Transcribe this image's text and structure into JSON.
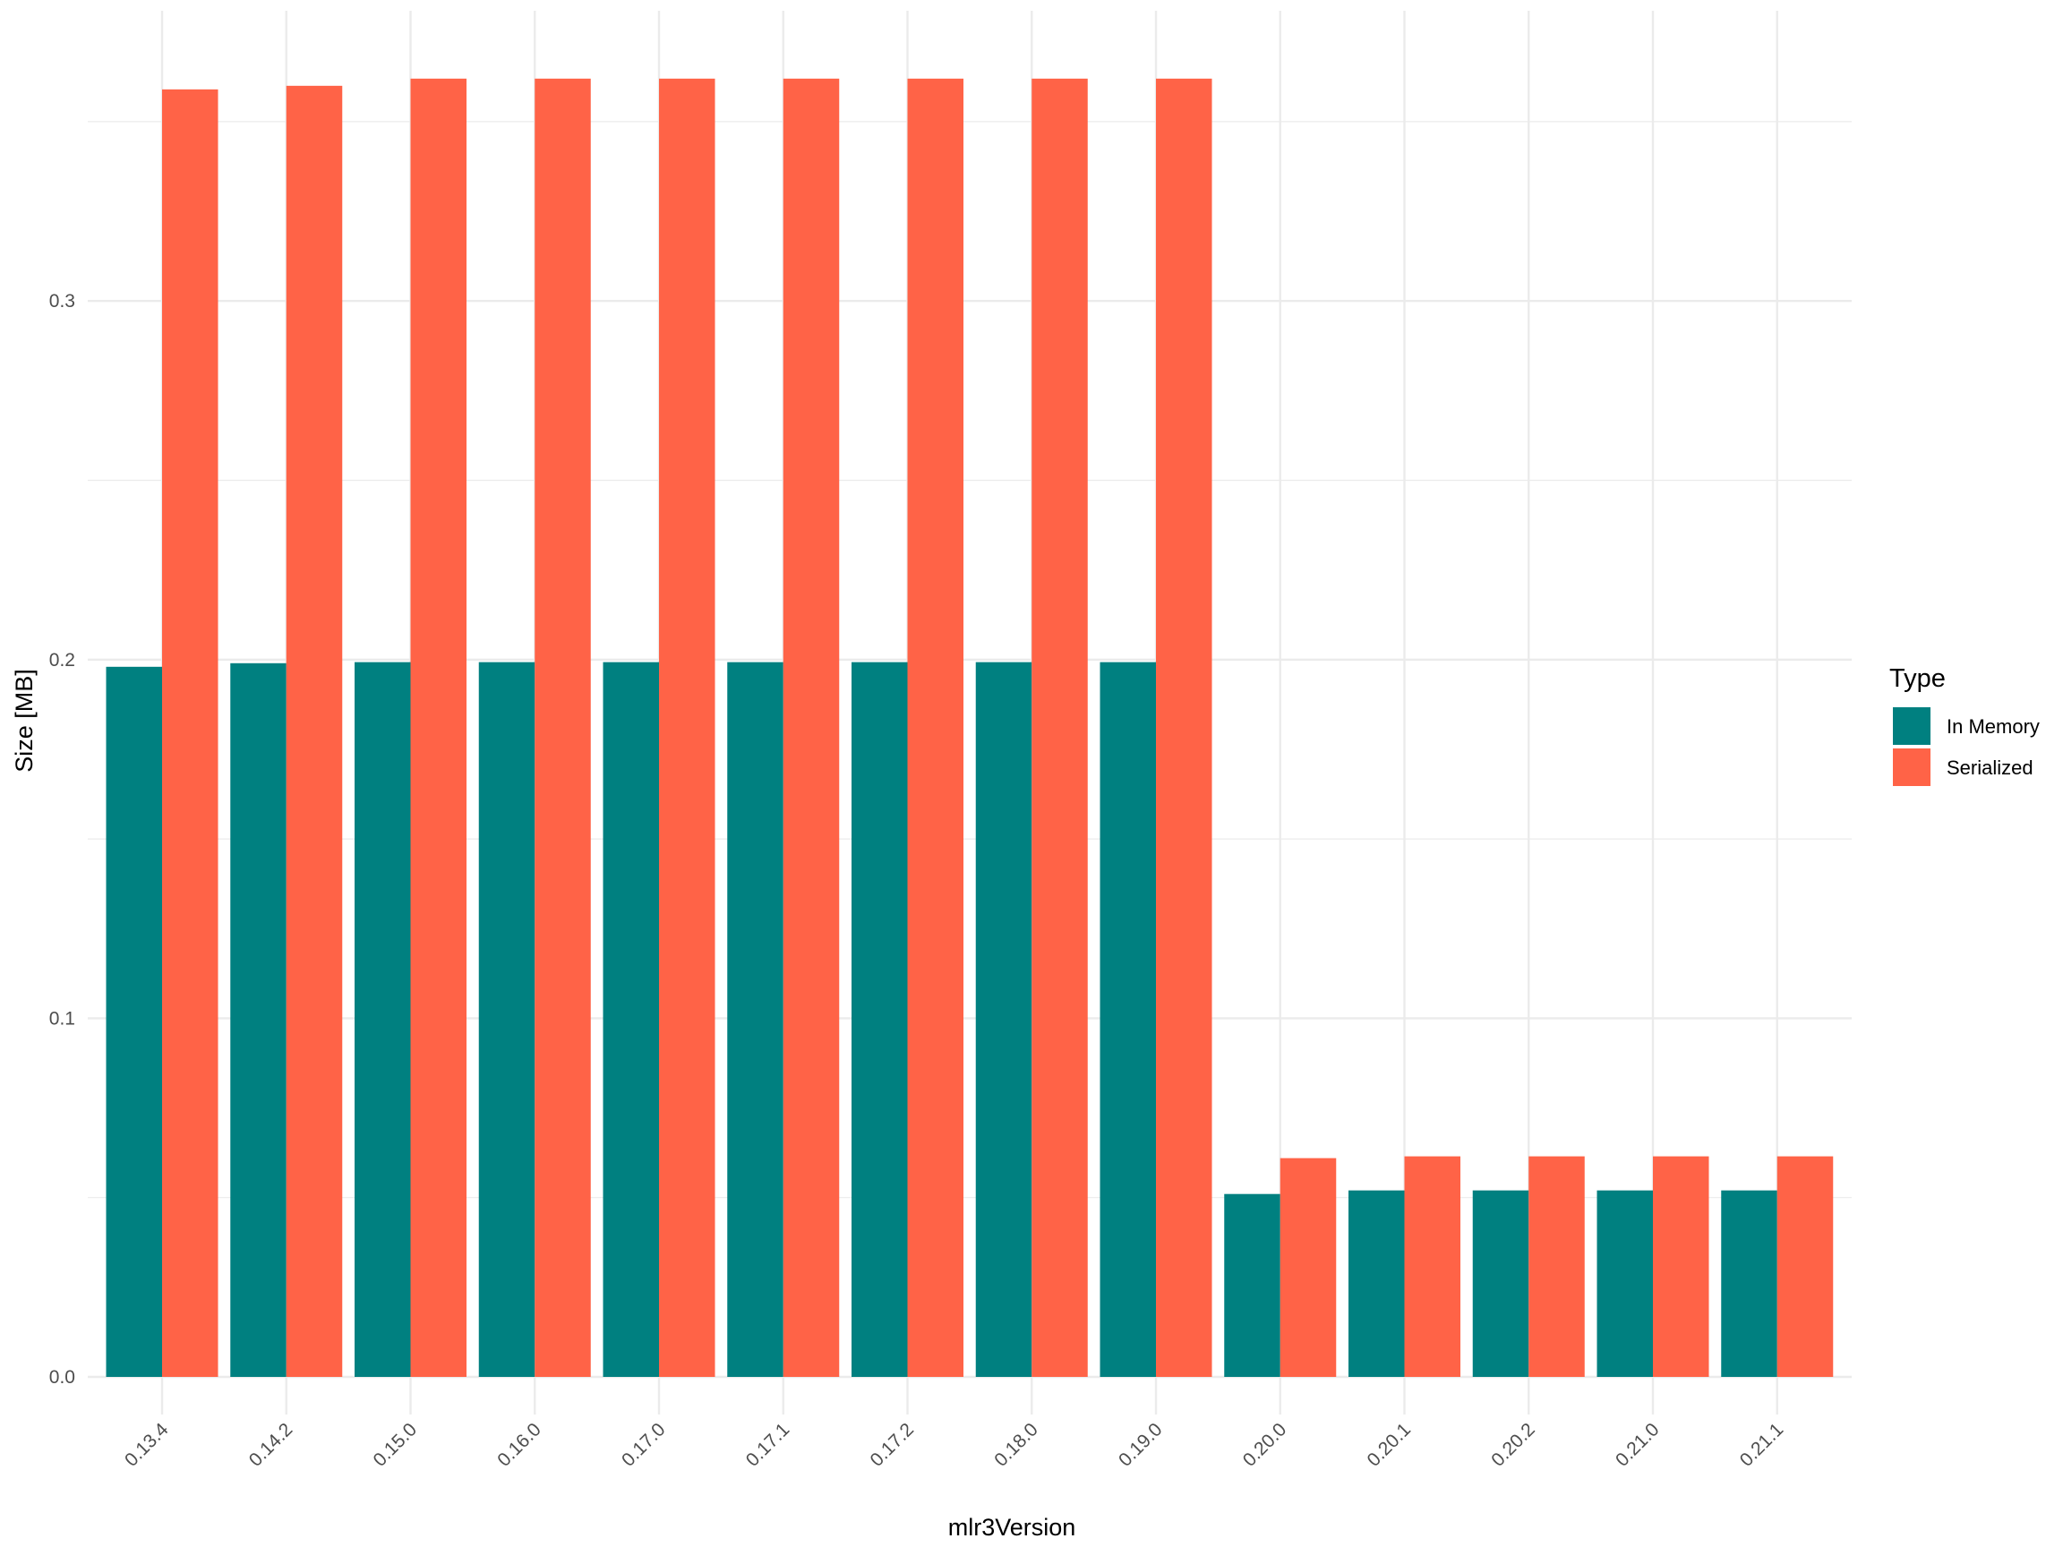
{
  "chart_data": {
    "type": "bar",
    "xlabel": "mlr3Version",
    "ylabel": "Size [MB]",
    "ylim": [
      -0.01,
      0.38
    ],
    "yticks": [
      0.0,
      0.1,
      0.2,
      0.3
    ],
    "ytick_labels": [
      "0.0",
      "0.1",
      "0.2",
      "0.3"
    ],
    "grid": true,
    "legend_position": "right",
    "legend_title": "Type",
    "categories": [
      "0.13.4",
      "0.14.2",
      "0.15.0",
      "0.16.0",
      "0.17.0",
      "0.17.1",
      "0.17.2",
      "0.18.0",
      "0.19.0",
      "0.20.0",
      "0.20.1",
      "0.20.2",
      "0.21.0",
      "0.21.1"
    ],
    "series": [
      {
        "name": "In Memory",
        "color": "#008080",
        "values": [
          0.198,
          0.199,
          0.1993,
          0.1993,
          0.1993,
          0.1993,
          0.1993,
          0.1993,
          0.1993,
          0.051,
          0.052,
          0.052,
          0.052,
          0.052
        ]
      },
      {
        "name": "Serialized",
        "color": "#FF6347",
        "values": [
          0.359,
          0.36,
          0.362,
          0.362,
          0.362,
          0.362,
          0.362,
          0.362,
          0.362,
          0.061,
          0.0615,
          0.0615,
          0.0615,
          0.0615
        ]
      }
    ]
  }
}
